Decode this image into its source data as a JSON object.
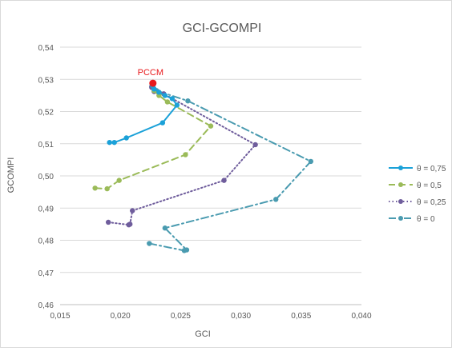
{
  "chart_data": {
    "type": "line",
    "title": "GCI-GCOMPI",
    "xlabel": "GCI",
    "ylabel": "GCOMPI",
    "xlim": [
      0.015,
      0.04
    ],
    "ylim": [
      0.46,
      0.54
    ],
    "x_ticks": [
      "0,015",
      "0,020",
      "0,025",
      "0,030",
      "0,035",
      "0,040"
    ],
    "y_ticks": [
      "0,46",
      "0,47",
      "0,48",
      "0,49",
      "0,50",
      "0,51",
      "0,52",
      "0,53",
      "0,54"
    ],
    "grid": "horizontal",
    "legend_position": "right",
    "annotation": {
      "text": "PCCM",
      "x": 0.0227,
      "y": 0.5288,
      "color": "#e8191c"
    },
    "series": [
      {
        "name": "θ = 0,75",
        "color": "#1ba1d8",
        "style": "solid",
        "points": [
          [
            0.0191,
            0.5104
          ],
          [
            0.0195,
            0.5104
          ],
          [
            0.0205,
            0.5118
          ],
          [
            0.0235,
            0.5165
          ],
          [
            0.0247,
            0.522
          ],
          [
            0.0243,
            0.524
          ],
          [
            0.0237,
            0.525
          ],
          [
            0.0232,
            0.526
          ],
          [
            0.0228,
            0.527
          ],
          [
            0.0227,
            0.528
          ]
        ]
      },
      {
        "name": "θ = 0,5",
        "color": "#9bbb59",
        "style": "dashed",
        "points": [
          [
            0.0179,
            0.4962
          ],
          [
            0.0189,
            0.496
          ],
          [
            0.0199,
            0.4986
          ],
          [
            0.0254,
            0.5066
          ],
          [
            0.0275,
            0.5155
          ],
          [
            0.0239,
            0.523
          ],
          [
            0.0232,
            0.525
          ],
          [
            0.0228,
            0.5265
          ],
          [
            0.0227,
            0.528
          ]
        ]
      },
      {
        "name": "θ = 0,25",
        "color": "#6f5d9c",
        "style": "dotted",
        "points": [
          [
            0.019,
            0.4856
          ],
          [
            0.0207,
            0.4848
          ],
          [
            0.0208,
            0.485
          ],
          [
            0.021,
            0.4892
          ],
          [
            0.0286,
            0.4986
          ],
          [
            0.0312,
            0.5097
          ],
          [
            0.0236,
            0.5255
          ],
          [
            0.0228,
            0.5262
          ],
          [
            0.0226,
            0.5275
          ]
        ]
      },
      {
        "name": "θ = 0",
        "color": "#4a9bb0",
        "style": "dashdot",
        "points": [
          [
            0.0224,
            0.479
          ],
          [
            0.0253,
            0.4768
          ],
          [
            0.0255,
            0.477
          ],
          [
            0.0237,
            0.4838
          ],
          [
            0.0329,
            0.4927
          ],
          [
            0.0358,
            0.5045
          ],
          [
            0.0256,
            0.5233
          ],
          [
            0.023,
            0.5265
          ],
          [
            0.0226,
            0.5278
          ]
        ]
      }
    ]
  }
}
